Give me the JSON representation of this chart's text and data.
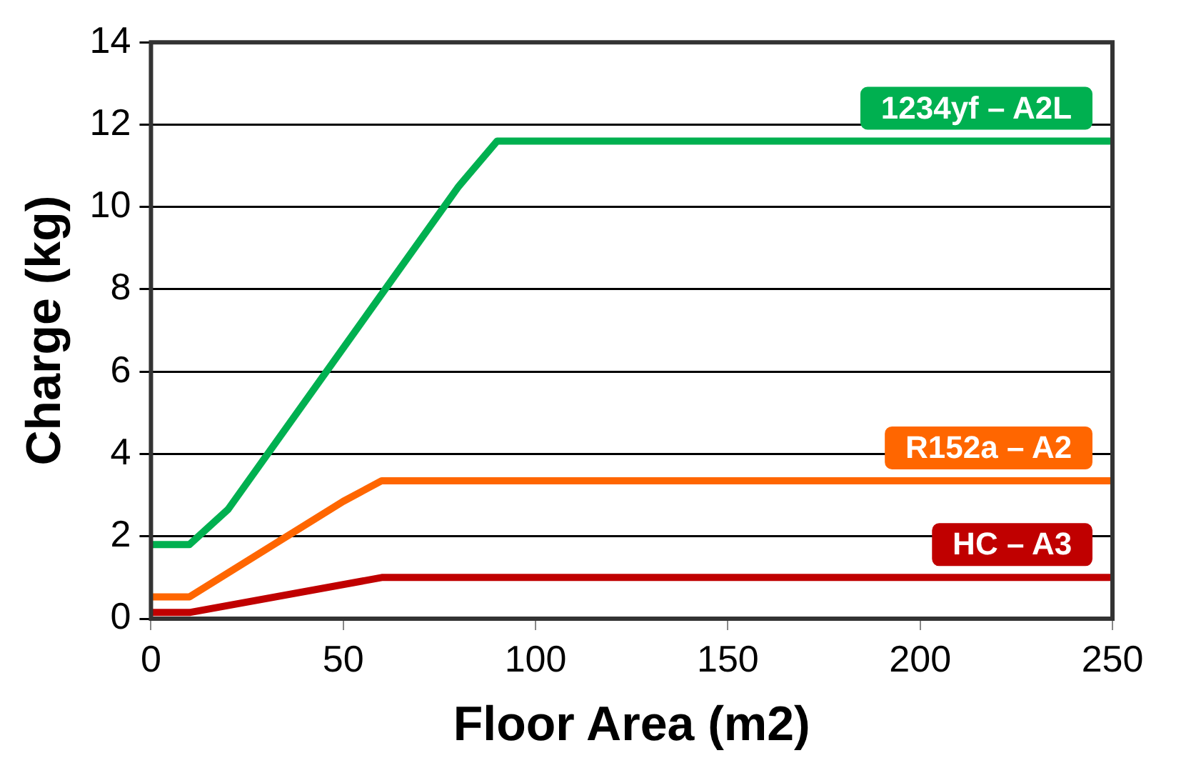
{
  "chart_data": {
    "type": "line",
    "xlabel": "Floor Area (m2)",
    "ylabel": "Charge (kg)",
    "xlim": [
      0,
      250
    ],
    "xticks": [
      0,
      50,
      100,
      150,
      200,
      250
    ],
    "ylim": [
      0,
      14
    ],
    "yticks": [
      0,
      2,
      4,
      6,
      8,
      10,
      12,
      14
    ],
    "grid": "y",
    "legend": false,
    "marker": "none",
    "line_style": "solid",
    "series": [
      {
        "name": "1234yf – A2L",
        "color": "#00b050",
        "x": [
          0,
          10,
          20,
          80,
          90,
          250
        ],
        "values": [
          1.8,
          1.8,
          2.65,
          10.5,
          11.6,
          11.6
        ]
      },
      {
        "name": "R152a – A2",
        "color": "#ff6600",
        "x": [
          0,
          10,
          50,
          60,
          250
        ],
        "values": [
          0.53,
          0.53,
          2.85,
          3.35,
          3.35
        ]
      },
      {
        "name": "HC – A3",
        "color": "#c00000",
        "x": [
          0,
          10,
          60,
          250
        ],
        "values": [
          0.15,
          0.15,
          1.0,
          1.0
        ]
      }
    ]
  }
}
